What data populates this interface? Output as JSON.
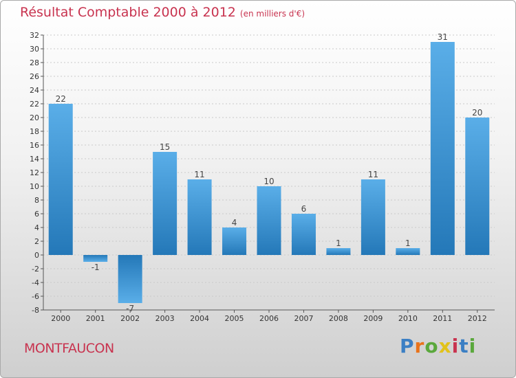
{
  "title": "Résultat Comptable 2000 à 2012",
  "unit_note": "(en milliers d'€)",
  "commune": "MONTFAUCON",
  "logo_text": "Proxiti",
  "logo_colors": [
    "#3b7fc4",
    "#e8731b",
    "#5aa83c",
    "#e2c21a",
    "#c8334f",
    "#3b7fc4",
    "#5aa83c"
  ],
  "chart_data": {
    "type": "bar",
    "title": "Résultat Comptable 2000 à 2012",
    "ylabel": "(en milliers d'€)",
    "xlabel": "",
    "categories": [
      "2000",
      "2001",
      "2002",
      "2003",
      "2004",
      "2005",
      "2006",
      "2007",
      "2008",
      "2009",
      "2010",
      "2011",
      "2012"
    ],
    "values": [
      22,
      -1,
      -7,
      15,
      11,
      4,
      10,
      6,
      1,
      11,
      1,
      31,
      20
    ],
    "labels": [
      "22",
      "-1",
      "-7",
      "15",
      "11",
      "4",
      "10",
      "6",
      "1",
      "11",
      "1",
      "31",
      "20"
    ],
    "ylim": [
      -8,
      32
    ],
    "yticks": [
      32,
      30,
      28,
      26,
      24,
      22,
      20,
      18,
      16,
      14,
      12,
      10,
      8,
      6,
      4,
      2,
      0,
      -2,
      -4,
      -6,
      -8
    ],
    "grid": true,
    "bar_color": "#3e98d8"
  }
}
